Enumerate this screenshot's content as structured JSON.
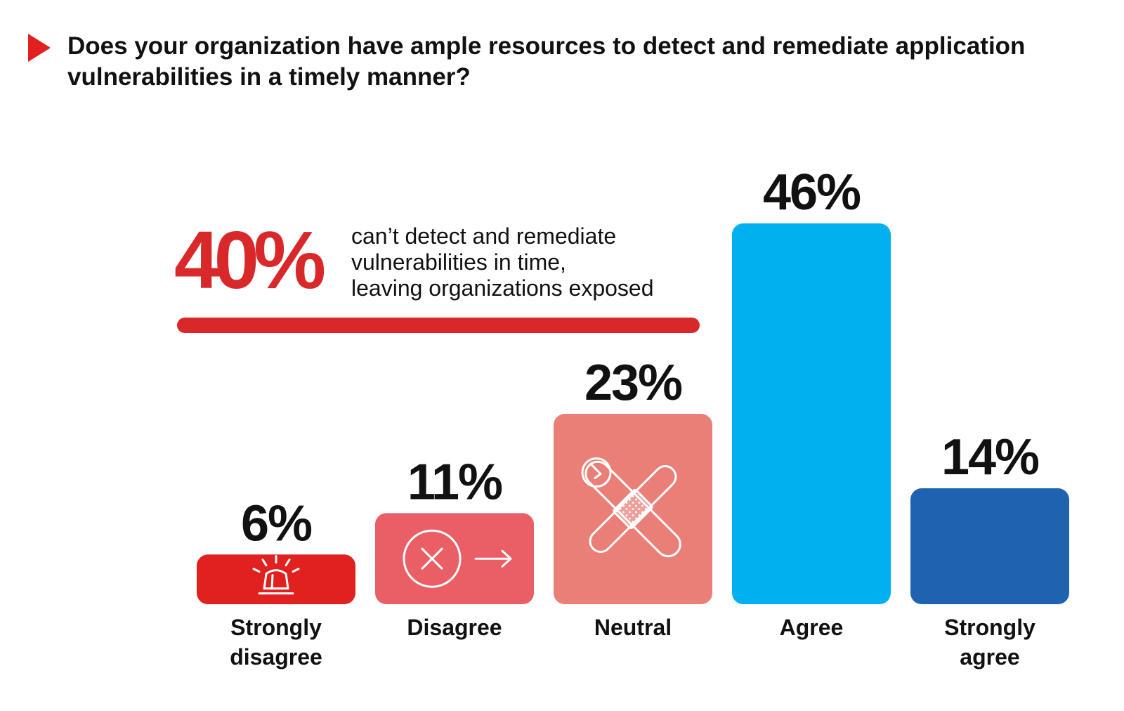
{
  "title": "Does your organization have ample resources to detect and remediate application vulnerabilities in a timely manner?",
  "callout": {
    "value": "40%",
    "lines": [
      "can’t detect and remediate",
      "vulnerabilities in time,",
      "leaving organizations exposed"
    ],
    "color": "#d9282a"
  },
  "chart_data": {
    "type": "bar",
    "title": "Does your organization have ample resources to detect and remediate application vulnerabilities in a timely manner?",
    "categories": [
      "Strongly disagree",
      "Disagree",
      "Neutral",
      "Agree",
      "Strongly agree"
    ],
    "category_label_lines": [
      [
        "Strongly",
        "disagree"
      ],
      [
        "Disagree"
      ],
      [
        "Neutral"
      ],
      [
        "Agree"
      ],
      [
        "Strongly",
        "agree"
      ]
    ],
    "values": [
      6,
      11,
      23,
      46,
      14
    ],
    "value_labels": [
      "6%",
      "11%",
      "23%",
      "46%",
      "14%"
    ],
    "colors": [
      "#e0211f",
      "#ea5f65",
      "#e97f77",
      "#00b0ef",
      "#1f62b0"
    ],
    "icons": [
      "siren-icon",
      "x-arrow-icon",
      "wrench-bandage-icon",
      null,
      null
    ],
    "xlabel": "",
    "ylabel": "",
    "ylim": [
      0,
      46
    ],
    "grid": false,
    "legend": "none"
  }
}
